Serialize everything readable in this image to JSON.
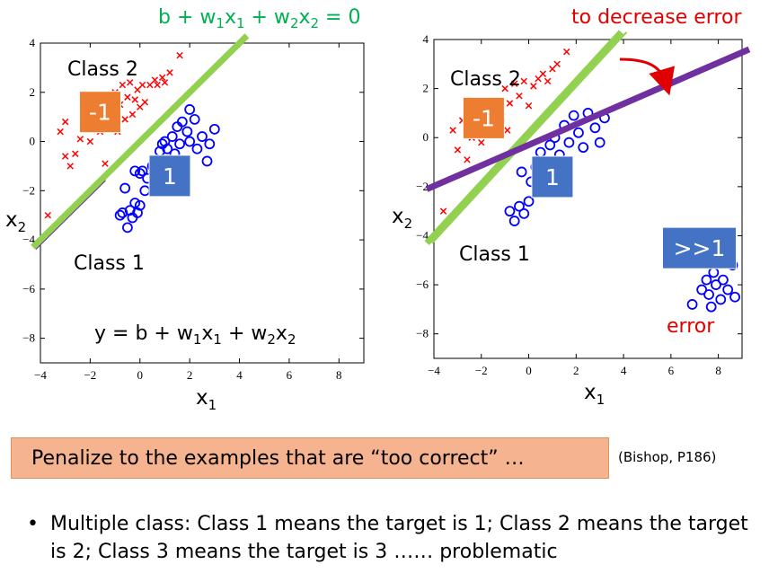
{
  "colors": {
    "boundary_green": "#92d050",
    "boundary_green_text": "#00b050",
    "boundary_purple": "#7030a0",
    "red_marker": "#ff0000",
    "blue_marker": "#0000ff",
    "badge_orange": "#ed7d31",
    "badge_blue": "#4472c4",
    "error_red": "#e00000",
    "banner_fill": "#f6b38f"
  },
  "top_right_text": "to decrease error",
  "bottom": {
    "banner": "Penalize to the examples that are “too correct” …",
    "citation": "(Bishop, P186)",
    "bullet": "Multiple class: Class 1 means the target is 1; Class 2 means the target is 2; Class 3 means the target is 3 …… problematic"
  },
  "chart_data": [
    {
      "type": "scatter",
      "xlim": [
        -4,
        9
      ],
      "ylim": [
        -9,
        4
      ],
      "xticks": [
        -4,
        -2,
        0,
        2,
        4,
        6,
        8
      ],
      "yticks": [
        4,
        2,
        0,
        -2,
        -4,
        -6,
        -8
      ],
      "xlabel": "x1",
      "ylabel": "x2",
      "grid": false,
      "top_equation": "b + w1x1 + w2x2 = 0",
      "inside_equation": "y = b + w1x1 + w2x2",
      "class2_label": "Class 2",
      "class1_label": "Class 1",
      "badges": [
        {
          "text": "-1",
          "color": "#ed7d31",
          "x": -1.6,
          "y": 1.2
        },
        {
          "text": "1",
          "color": "#4472c4",
          "x": 1.2,
          "y": -1.4
        }
      ],
      "boundary": {
        "x": [
          -4.3,
          4.3
        ],
        "y": [
          -4.3,
          4.3
        ]
      },
      "series": [
        {
          "marker": "x",
          "points": [
            [
              -3.7,
              -3.0
            ],
            [
              -3.2,
              0.4
            ],
            [
              -3.0,
              -0.6
            ],
            [
              -3.0,
              0.8
            ],
            [
              -2.8,
              -1.0
            ],
            [
              -2.6,
              -0.5
            ],
            [
              -2.4,
              0.1
            ],
            [
              -2.2,
              0.6
            ],
            [
              -2.0,
              0.0
            ],
            [
              -1.8,
              1.2
            ],
            [
              -1.6,
              0.4
            ],
            [
              -1.4,
              -0.9
            ],
            [
              -1.3,
              1.6
            ],
            [
              -1.2,
              0.9
            ],
            [
              -1.0,
              2.0
            ],
            [
              -1.0,
              1.2
            ],
            [
              -0.9,
              0.4
            ],
            [
              -0.8,
              1.5
            ],
            [
              -0.7,
              2.3
            ],
            [
              -0.6,
              0.9
            ],
            [
              -0.5,
              1.8
            ],
            [
              -0.4,
              2.4
            ],
            [
              -0.3,
              1.1
            ],
            [
              -0.2,
              1.7
            ],
            [
              -0.1,
              2.1
            ],
            [
              0.0,
              1.4
            ],
            [
              0.1,
              2.3
            ],
            [
              0.2,
              1.6
            ],
            [
              0.4,
              2.3
            ],
            [
              0.6,
              2.5
            ],
            [
              0.7,
              2.3
            ],
            [
              0.9,
              2.6
            ],
            [
              1.0,
              2.4
            ],
            [
              1.2,
              2.8
            ],
            [
              1.6,
              3.5
            ]
          ]
        },
        {
          "marker": "o",
          "points": [
            [
              -0.8,
              -3.0
            ],
            [
              -0.7,
              -2.9
            ],
            [
              -0.5,
              -3.5
            ],
            [
              -0.4,
              -2.8
            ],
            [
              -0.3,
              -3.1
            ],
            [
              -0.2,
              -2.5
            ],
            [
              -0.1,
              -2.9
            ],
            [
              0.0,
              -2.6
            ],
            [
              0.0,
              -1.3
            ],
            [
              0.1,
              -1.2
            ],
            [
              0.2,
              -2.0
            ],
            [
              0.3,
              -1.5
            ],
            [
              0.5,
              -1.0
            ],
            [
              0.6,
              -1.7
            ],
            [
              0.7,
              -0.9
            ],
            [
              0.8,
              -0.4
            ],
            [
              0.9,
              -0.1
            ],
            [
              1.0,
              0.0
            ],
            [
              1.1,
              -0.3
            ],
            [
              1.2,
              -1.3
            ],
            [
              1.3,
              0.2
            ],
            [
              1.4,
              -0.5
            ],
            [
              1.5,
              0.6
            ],
            [
              1.6,
              -0.1
            ],
            [
              1.6,
              -2.0
            ],
            [
              1.7,
              0.8
            ],
            [
              1.8,
              -0.8
            ],
            [
              1.9,
              0.4
            ],
            [
              2.0,
              1.3
            ],
            [
              2.0,
              0.0
            ],
            [
              2.2,
              0.9
            ],
            [
              2.3,
              -0.3
            ],
            [
              2.5,
              0.2
            ],
            [
              2.7,
              -0.8
            ],
            [
              2.8,
              -0.1
            ],
            [
              3.0,
              0.5
            ],
            [
              -0.6,
              -1.9
            ],
            [
              -0.2,
              -1.2
            ]
          ]
        }
      ]
    },
    {
      "type": "scatter",
      "xlim": [
        -4,
        9
      ],
      "ylim": [
        -9,
        4
      ],
      "xticks": [
        -4,
        -2,
        0,
        2,
        4,
        6,
        8
      ],
      "yticks": [
        4,
        2,
        0,
        -2,
        -4,
        -6,
        -8
      ],
      "xlabel": "x1",
      "ylabel": "x2",
      "grid": false,
      "class2_label": "Class 2",
      "class1_label": "Class 1",
      "error_label": "error",
      "badges": [
        {
          "text": "-1",
          "color": "#ed7d31",
          "x": -1.9,
          "y": 0.8
        },
        {
          "text": "1",
          "color": "#4472c4",
          "x": 1.0,
          "y": -1.6
        },
        {
          "text": ">>1",
          "color": "#4472c4",
          "x": 7.2,
          "y": -4.5
        }
      ],
      "boundaries": [
        {
          "name": "green",
          "x": [
            -4.3,
            3.9
          ],
          "y": [
            -4.3,
            4.3
          ]
        },
        {
          "name": "purple",
          "x": [
            -4.3,
            9.3
          ],
          "y": [
            -2.1,
            3.6
          ]
        }
      ],
      "series": [
        {
          "marker": "x",
          "points": [
            [
              -3.6,
              -3.0
            ],
            [
              -3.2,
              0.3
            ],
            [
              -3.0,
              -0.5
            ],
            [
              -2.8,
              0.7
            ],
            [
              -2.6,
              -0.9
            ],
            [
              -2.4,
              0.0
            ],
            [
              -2.2,
              0.5
            ],
            [
              -2.0,
              -0.2
            ],
            [
              -1.8,
              1.1
            ],
            [
              -1.6,
              0.3
            ],
            [
              -1.4,
              1.5
            ],
            [
              -1.2,
              0.9
            ],
            [
              -1.0,
              2.0
            ],
            [
              -0.9,
              0.3
            ],
            [
              -0.8,
              1.4
            ],
            [
              -0.6,
              2.2
            ],
            [
              -0.4,
              1.7
            ],
            [
              -0.2,
              2.3
            ],
            [
              0.0,
              1.3
            ],
            [
              0.2,
              2.1
            ],
            [
              0.4,
              2.4
            ],
            [
              0.6,
              2.6
            ],
            [
              0.8,
              2.3
            ],
            [
              1.0,
              2.8
            ],
            [
              1.2,
              3.0
            ],
            [
              1.6,
              3.5
            ]
          ]
        },
        {
          "marker": "o",
          "points": [
            [
              -0.8,
              -3.0
            ],
            [
              -0.6,
              -3.4
            ],
            [
              -0.4,
              -2.8
            ],
            [
              -0.2,
              -3.1
            ],
            [
              0.0,
              -2.6
            ],
            [
              0.1,
              -1.8
            ],
            [
              0.3,
              -1.2
            ],
            [
              0.5,
              -0.6
            ],
            [
              0.7,
              -1.5
            ],
            [
              0.9,
              -0.3
            ],
            [
              1.1,
              0.0
            ],
            [
              1.3,
              -0.7
            ],
            [
              1.5,
              0.5
            ],
            [
              1.7,
              -0.2
            ],
            [
              1.9,
              0.9
            ],
            [
              2.1,
              0.2
            ],
            [
              2.3,
              -0.4
            ],
            [
              2.5,
              1.0
            ],
            [
              2.8,
              0.4
            ],
            [
              3.0,
              -0.2
            ],
            [
              3.2,
              0.8
            ],
            [
              -0.3,
              -1.4
            ],
            [
              6.9,
              -6.8
            ],
            [
              7.3,
              -6.2
            ],
            [
              7.5,
              -5.8
            ],
            [
              7.6,
              -6.4
            ],
            [
              7.8,
              -5.5
            ],
            [
              7.9,
              -6.0
            ],
            [
              8.1,
              -6.6
            ],
            [
              8.2,
              -5.8
            ],
            [
              8.4,
              -6.2
            ],
            [
              8.6,
              -5.2
            ],
            [
              8.7,
              -6.5
            ],
            [
              7.7,
              -6.9
            ]
          ]
        }
      ]
    }
  ]
}
